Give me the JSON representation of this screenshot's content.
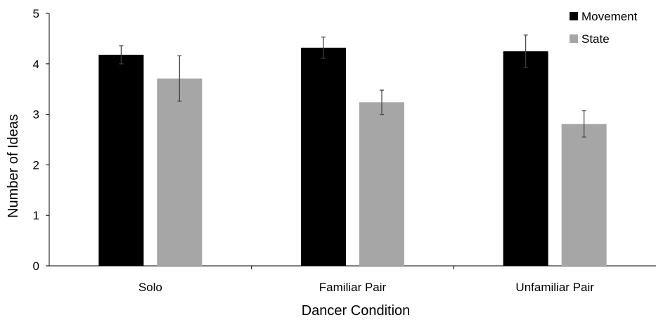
{
  "chart_data": {
    "type": "bar",
    "title": "",
    "xlabel": "Dancer Condition",
    "ylabel": "Number of Ideas",
    "ylim": [
      0,
      5
    ],
    "yticks": [
      "0",
      "1",
      "2",
      "3",
      "4",
      "5"
    ],
    "categories": [
      "Solo",
      "Familiar Pair",
      "Unfamiliar Pair"
    ],
    "series": [
      {
        "name": "Movement",
        "color": "#000000",
        "values": [
          4.18,
          4.32,
          4.25
        ],
        "errors": [
          0.18,
          0.21,
          0.32
        ]
      },
      {
        "name": "State",
        "color": "#a6a6a6",
        "values": [
          3.71,
          3.24,
          2.81
        ],
        "errors": [
          0.45,
          0.24,
          0.26
        ]
      }
    ],
    "grid": false,
    "legend_position": "top-right"
  }
}
